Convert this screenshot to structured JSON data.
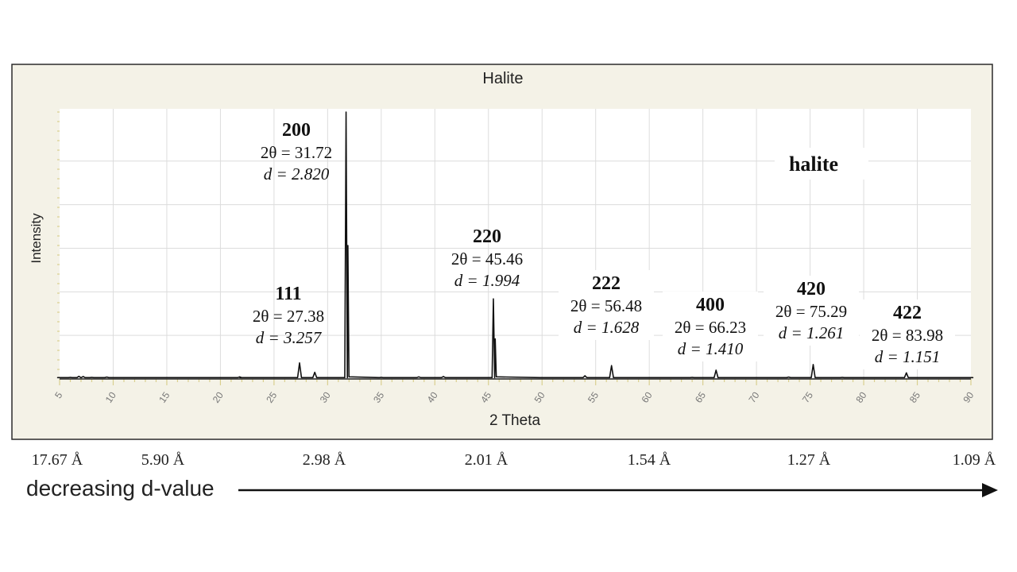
{
  "chart_data": {
    "type": "line",
    "title": "Halite",
    "xlabel": "2 Theta",
    "ylabel": "Intensity",
    "xlim": [
      5,
      90
    ],
    "ylim": [
      0,
      100
    ],
    "grid": true,
    "x_ticks": [
      5,
      10,
      15,
      20,
      25,
      30,
      35,
      40,
      45,
      50,
      55,
      60,
      65,
      70,
      75,
      80,
      85,
      90
    ],
    "series": [
      {
        "values": [
          [
            5,
            0.5
          ],
          [
            6,
            0.6
          ],
          [
            6.8,
            1.0
          ],
          [
            7.2,
            0.9
          ],
          [
            8,
            0.6
          ],
          [
            9.4,
            0.7
          ],
          [
            10,
            0.5
          ],
          [
            20,
            0.5
          ],
          [
            21.8,
            0.8
          ],
          [
            22,
            0.5
          ],
          [
            27.38,
            6
          ],
          [
            28.8,
            2.5
          ],
          [
            31.72,
            100
          ],
          [
            35,
            0.6
          ],
          [
            38.5,
            0.8
          ],
          [
            40.8,
            0.9
          ],
          [
            45.46,
            30
          ],
          [
            50,
            0.5
          ],
          [
            54,
            1.2
          ],
          [
            56.48,
            5
          ],
          [
            64,
            0.6
          ],
          [
            66.23,
            3.3
          ],
          [
            73,
            0.7
          ],
          [
            75.29,
            5.4
          ],
          [
            78,
            0.6
          ],
          [
            83.98,
            2.3
          ],
          [
            90,
            0.5
          ]
        ]
      }
    ],
    "chart_label": "halite",
    "peaks": [
      {
        "hkl": "111",
        "two_theta": 27.38,
        "theta_text": "2θ = 27.38",
        "d_text": "d = 3.257"
      },
      {
        "hkl": "200",
        "two_theta": 31.72,
        "theta_text": "2θ = 31.72",
        "d_text": "d = 2.820"
      },
      {
        "hkl": "220",
        "two_theta": 45.46,
        "theta_text": "2θ = 45.46",
        "d_text": "d = 1.994"
      },
      {
        "hkl": "222",
        "two_theta": 56.48,
        "theta_text": "2θ = 56.48",
        "d_text": "d = 1.628"
      },
      {
        "hkl": "400",
        "two_theta": 66.23,
        "theta_text": "2θ = 66.23",
        "d_text": "d = 1.410"
      },
      {
        "hkl": "420",
        "two_theta": 75.29,
        "theta_text": "2θ = 75.29",
        "d_text": "d = 1.261"
      },
      {
        "hkl": "422",
        "two_theta": 83.98,
        "theta_text": "2θ = 83.98",
        "d_text": "d = 1.151"
      }
    ],
    "d_scale": [
      "17.67 Å",
      "5.90 Å",
      "2.98 Å",
      "2.01 Å",
      "1.54 Å",
      "1.27 Å",
      "1.09 Å"
    ],
    "arrow_label": "decreasing d-value"
  }
}
